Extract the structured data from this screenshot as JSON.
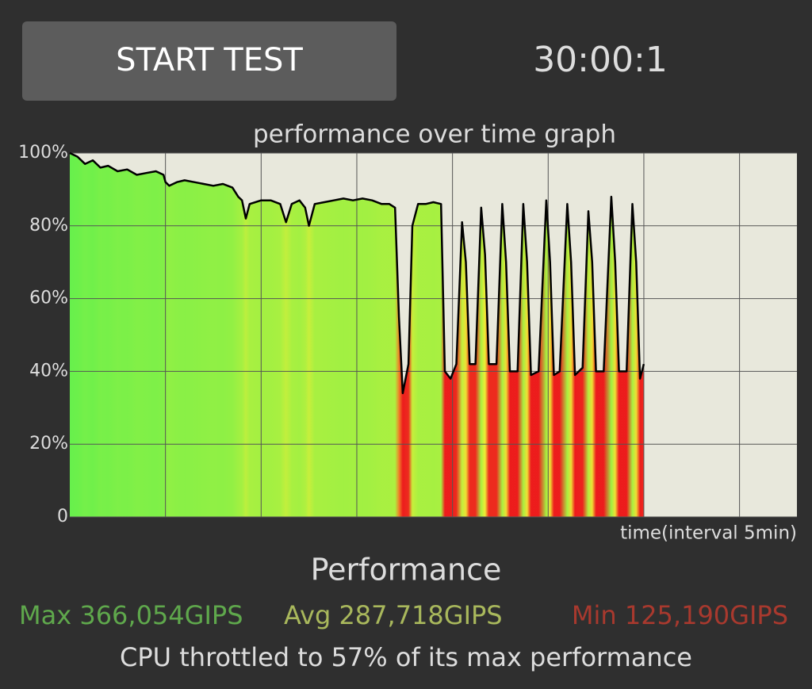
{
  "header": {
    "button": "START TEST",
    "timer": "30:00:1"
  },
  "chart_data": {
    "type": "line",
    "title": "performance over time graph",
    "x_label": "time(interval 5min)",
    "x": [
      0,
      0.4,
      0.8,
      1.2,
      1.6,
      2,
      2.5,
      3,
      3.5,
      4,
      4.5,
      4.9,
      5.0,
      5.2,
      5.6,
      6,
      6.5,
      7,
      7.5,
      8,
      8.5,
      8.8,
      9.0,
      9.2,
      9.4,
      10,
      10.5,
      11,
      11.3,
      11.6,
      12,
      12.3,
      12.5,
      12.8,
      13.3,
      13.8,
      14.3,
      14.8,
      15.3,
      15.8,
      16.3,
      16.7,
      17.0,
      17.2,
      17.4,
      17.7,
      17.9,
      18.2,
      18.6,
      19.0,
      19.4,
      19.6,
      19.9,
      20.2,
      20.5,
      20.7,
      20.9,
      21.2,
      21.5,
      21.7,
      21.9,
      22.3,
      22.6,
      22.8,
      23.0,
      23.4,
      23.7,
      23.9,
      24.1,
      24.5,
      24.9,
      25.1,
      25.3,
      25.6,
      26.0,
      26.2,
      26.4,
      26.8,
      27.1,
      27.3,
      27.5,
      27.9,
      28.3,
      28.5,
      28.7,
      29.1,
      29.4,
      29.6,
      29.8,
      30.0
    ],
    "values": [
      100,
      99,
      97,
      98,
      96,
      96.5,
      95,
      95.5,
      94,
      94.5,
      95,
      94,
      92,
      91,
      92,
      92.5,
      92,
      91.5,
      91,
      91.5,
      90.5,
      88,
      87,
      82,
      86,
      87,
      87,
      86,
      81,
      86,
      87,
      85,
      80,
      86,
      86.5,
      87,
      87.5,
      87,
      87.5,
      87,
      86,
      86,
      85,
      55,
      34,
      42,
      80,
      86,
      86,
      86.5,
      86,
      40,
      38,
      42,
      81,
      70,
      42,
      42,
      85,
      72,
      42,
      42,
      86,
      70,
      40,
      40,
      86,
      70,
      39,
      40,
      87,
      70,
      39,
      40,
      86,
      70,
      39,
      41,
      84,
      70,
      40,
      40,
      88,
      70,
      40,
      40,
      86,
      70,
      38,
      42
    ],
    "color": "#000000",
    "xlim": [
      0,
      38
    ],
    "xticks": [
      5,
      10,
      15,
      20,
      25,
      30,
      35
    ],
    "ylim": [
      0,
      100
    ],
    "yticks": [
      0,
      {
        "value": 20,
        "label": "20%"
      },
      {
        "value": 40,
        "label": "40%"
      },
      {
        "value": 60,
        "label": "60%"
      },
      {
        "value": 80,
        "label": "80%"
      },
      {
        "value": 100,
        "label": "100%"
      }
    ],
    "grid": true
  },
  "performance": {
    "title": "Performance",
    "max": "Max 366,054GIPS",
    "avg": "Avg 287,718GIPS",
    "min": "Min 125,190GIPS",
    "summary": "CPU throttled to 57% of its max performance"
  }
}
